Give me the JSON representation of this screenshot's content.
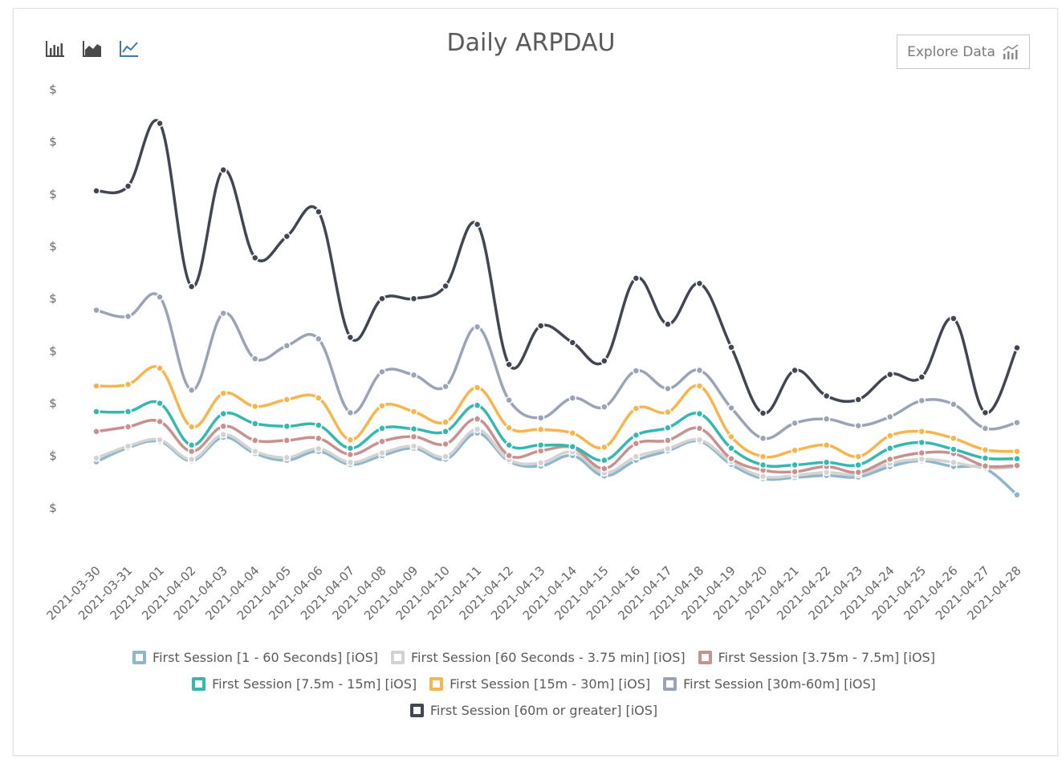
{
  "toolbar": {
    "chart_types": [
      {
        "icon": "bar-chart-icon",
        "color": "#4a4a4a"
      },
      {
        "icon": "area-chart-icon",
        "color": "#4a4a4a"
      },
      {
        "icon": "line-chart-icon",
        "color": "#3d7ba5"
      }
    ],
    "explore_label": "Explore Data",
    "explore_icon": "explore-chart-icon"
  },
  "chart_data": {
    "type": "line",
    "title": "Daily ARPDAU",
    "xlabel": "",
    "ylabel": "",
    "y_tick_labels": [
      "$",
      "$",
      "$",
      "$",
      "$",
      "$",
      "$",
      "$",
      "$"
    ],
    "ylim": [
      0,
      8
    ],
    "grid": false,
    "legend_placement": "bottom",
    "categories": [
      "2021-03-30",
      "2021-03-31",
      "2021-04-01",
      "2021-04-02",
      "2021-04-03",
      "2021-04-04",
      "2021-04-05",
      "2021-04-06",
      "2021-04-07",
      "2021-04-08",
      "2021-04-09",
      "2021-04-10",
      "2021-04-11",
      "2021-04-12",
      "2021-04-13",
      "2021-04-14",
      "2021-04-15",
      "2021-04-16",
      "2021-04-17",
      "2021-04-18",
      "2021-04-19",
      "2021-04-20",
      "2021-04-21",
      "2021-04-22",
      "2021-04-23",
      "2021-04-24",
      "2021-04-25",
      "2021-04-26",
      "2021-04-27",
      "2021-04-28"
    ],
    "series": [
      {
        "name": "First Session [1 - 60 Seconds] [iOS]",
        "color": "#8fb7cc",
        "values": [
          0.88,
          1.15,
          1.27,
          0.9,
          1.35,
          1.04,
          0.91,
          1.08,
          0.83,
          1.0,
          1.14,
          0.93,
          1.43,
          0.89,
          0.8,
          1.0,
          0.61,
          0.91,
          1.09,
          1.27,
          0.83,
          0.56,
          0.58,
          0.62,
          0.59,
          0.79,
          0.9,
          0.79,
          0.75,
          0.25
        ]
      },
      {
        "name": "First Session [60 Seconds - 3.75 min] [iOS]",
        "color": "#d3d3d3",
        "values": [
          0.95,
          1.18,
          1.3,
          0.93,
          1.4,
          1.08,
          0.96,
          1.13,
          0.87,
          1.05,
          1.18,
          0.98,
          1.5,
          0.92,
          0.86,
          1.07,
          0.67,
          0.98,
          1.13,
          1.3,
          0.88,
          0.6,
          0.62,
          0.68,
          0.64,
          0.85,
          0.93,
          0.87,
          0.76,
          0.78
        ]
      },
      {
        "name": "First Session [3.75m - 7.5m] [iOS]",
        "color": "#c99090",
        "values": [
          1.46,
          1.55,
          1.65,
          1.08,
          1.56,
          1.29,
          1.29,
          1.33,
          1.02,
          1.27,
          1.36,
          1.22,
          1.7,
          1.0,
          1.09,
          1.15,
          0.75,
          1.23,
          1.29,
          1.52,
          0.94,
          0.72,
          0.69,
          0.79,
          0.68,
          0.93,
          1.05,
          1.04,
          0.8,
          0.81
        ]
      },
      {
        "name": "First Session [7.5m - 15m] [iOS]",
        "color": "#36b7b0",
        "values": [
          1.84,
          1.84,
          2.0,
          1.2,
          1.8,
          1.61,
          1.56,
          1.58,
          1.14,
          1.52,
          1.51,
          1.46,
          1.96,
          1.2,
          1.2,
          1.17,
          0.91,
          1.39,
          1.53,
          1.8,
          1.14,
          0.82,
          0.82,
          0.87,
          0.82,
          1.14,
          1.25,
          1.12,
          0.95,
          0.94
        ]
      },
      {
        "name": "First Session [15m - 30m] [iOS]",
        "color": "#f7b54f",
        "values": [
          2.33,
          2.36,
          2.67,
          1.55,
          2.19,
          1.94,
          2.07,
          2.1,
          1.3,
          1.95,
          1.84,
          1.64,
          2.3,
          1.53,
          1.5,
          1.43,
          1.16,
          1.9,
          1.83,
          2.33,
          1.36,
          0.98,
          1.1,
          1.2,
          0.98,
          1.38,
          1.46,
          1.33,
          1.11,
          1.08
        ]
      },
      {
        "name": "First Session [30m-60m] [iOS]",
        "color": "#9aa4b6",
        "values": [
          3.78,
          3.66,
          4.03,
          2.25,
          3.72,
          2.85,
          3.1,
          3.23,
          1.82,
          2.6,
          2.54,
          2.32,
          3.46,
          2.06,
          1.72,
          2.1,
          1.93,
          2.62,
          2.28,
          2.63,
          1.91,
          1.33,
          1.62,
          1.7,
          1.57,
          1.74,
          2.05,
          1.98,
          1.52,
          1.63
        ]
      },
      {
        "name": "First Session [60m or greater] [iOS]",
        "color": "#414653",
        "values": [
          6.06,
          6.15,
          7.35,
          4.23,
          6.46,
          4.78,
          5.19,
          5.66,
          3.26,
          4.0,
          4.0,
          4.24,
          5.42,
          2.74,
          3.48,
          3.16,
          2.81,
          4.39,
          3.51,
          4.29,
          3.07,
          1.81,
          2.63,
          2.14,
          2.07,
          2.55,
          2.5,
          3.62,
          1.82,
          3.06
        ]
      }
    ]
  }
}
